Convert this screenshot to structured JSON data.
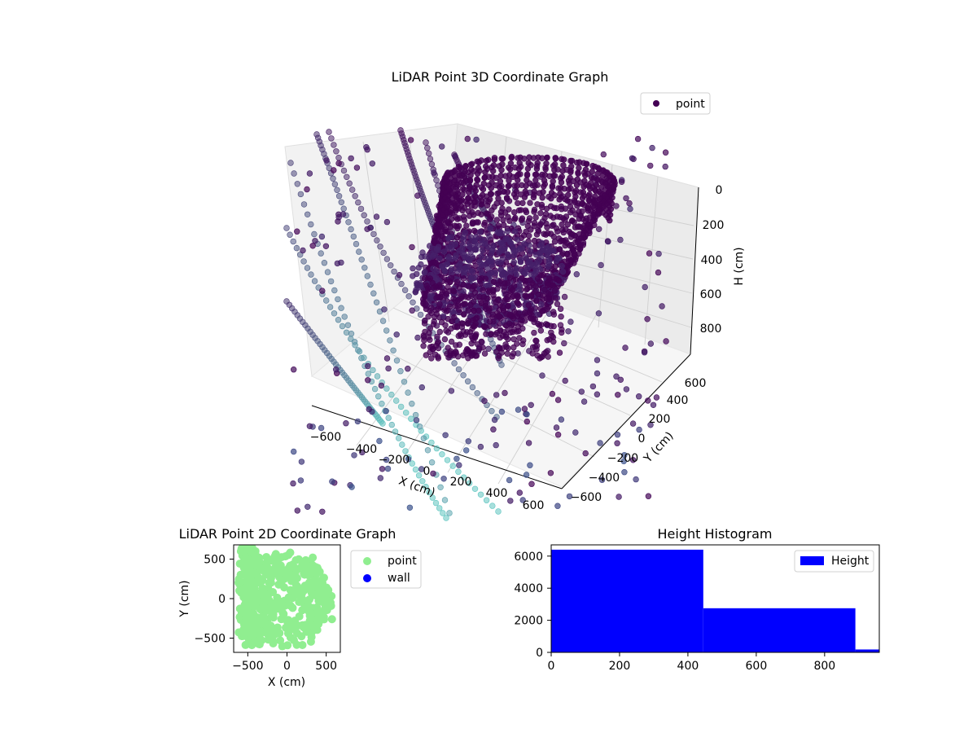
{
  "chart_data": [
    {
      "type": "scatter3d",
      "title": "LiDAR Point 3D Coordinate Graph",
      "xlabel": "X (cm)",
      "ylabel": "Y (cm)",
      "zlabel": "H (cm)",
      "xticks": [
        "−600",
        "−400",
        "−200",
        "0",
        "200",
        "400",
        "600"
      ],
      "yticks": [
        "−600",
        "−400",
        "−200",
        "0",
        "200",
        "400",
        "600"
      ],
      "zticks": [
        "0",
        "200",
        "400",
        "600",
        "800"
      ],
      "xlim": [
        -700,
        700
      ],
      "ylim": [
        -700,
        700
      ],
      "zlim": [
        0,
        950
      ],
      "z_inverted": true,
      "legend": [
        "point"
      ],
      "legend_position": "top-right",
      "colors": {
        "near": "#440154",
        "mid": "#3b528b",
        "far": "#5ec5c0",
        "marker": "#440154"
      }
    },
    {
      "type": "scatter",
      "title": "LiDAR Point 2D Coordinate Graph",
      "xlabel": "X (cm)",
      "ylabel": "Y (cm)",
      "xticks": [
        "−500",
        "0",
        "500"
      ],
      "yticks": [
        "500",
        "0",
        "−500"
      ],
      "xlim": [
        -680,
        680
      ],
      "ylim": [
        -680,
        680
      ],
      "series": [
        {
          "name": "point",
          "color": "#90ee90"
        },
        {
          "name": "wall",
          "color": "#0000ff"
        }
      ],
      "legend_position": "outside-right"
    },
    {
      "type": "histogram",
      "title": "Height Histogram",
      "xlabel": "",
      "ylabel": "",
      "xticks": [
        "0",
        "200",
        "400",
        "600",
        "800"
      ],
      "yticks": [
        "0",
        "2000",
        "4000",
        "6000"
      ],
      "xlim": [
        0,
        960
      ],
      "ylim": [
        0,
        6700
      ],
      "bins": [
        {
          "start": 0,
          "end": 445,
          "count": 6400
        },
        {
          "start": 445,
          "end": 890,
          "count": 2750
        },
        {
          "start": 890,
          "end": 960,
          "count": 180
        }
      ],
      "legend": [
        "Height"
      ],
      "legend_position": "top-right",
      "color": "#0000ff"
    }
  ]
}
